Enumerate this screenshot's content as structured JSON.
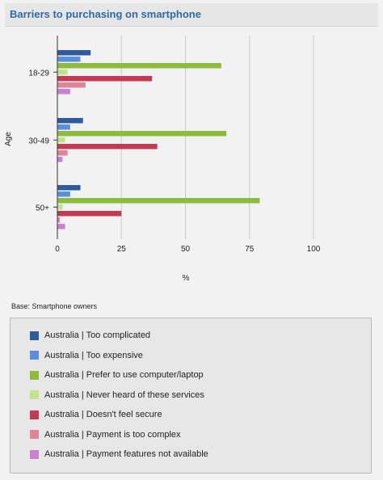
{
  "header": {
    "title": "Barriers to purchasing on smartphone"
  },
  "base_note": "Base: Smartphone owners",
  "chart_data": {
    "type": "bar",
    "orientation": "horizontal",
    "title": "Barriers to purchasing on smartphone",
    "xlabel": "%",
    "ylabel": "Age",
    "xlim": [
      0,
      100
    ],
    "xticks": [
      0,
      25,
      50,
      75,
      100
    ],
    "grid": true,
    "legend_position": "bottom",
    "categories": [
      "18-29",
      "30-49",
      "50+"
    ],
    "series": [
      {
        "name": "Australia | Too complicated",
        "color": "#2c5b9e",
        "values": [
          13,
          10,
          9
        ]
      },
      {
        "name": "Australia | Too expensive",
        "color": "#5b8fdb",
        "values": [
          9,
          5,
          5
        ]
      },
      {
        "name": "Australia | Prefer to use computer/laptop",
        "color": "#8dbb3e",
        "values": [
          64,
          66,
          79
        ]
      },
      {
        "name": "Australia | Never heard of these services",
        "color": "#c3e28e",
        "values": [
          4,
          3,
          2
        ]
      },
      {
        "name": "Australia | Doesn't feel secure",
        "color": "#c33a55",
        "values": [
          37,
          39,
          25
        ]
      },
      {
        "name": "Australia | Payment is too complex",
        "color": "#de8597",
        "values": [
          11,
          4,
          1
        ]
      },
      {
        "name": "Australia | Payment features not available",
        "color": "#cc7fd0",
        "values": [
          5,
          2,
          3
        ]
      }
    ]
  }
}
